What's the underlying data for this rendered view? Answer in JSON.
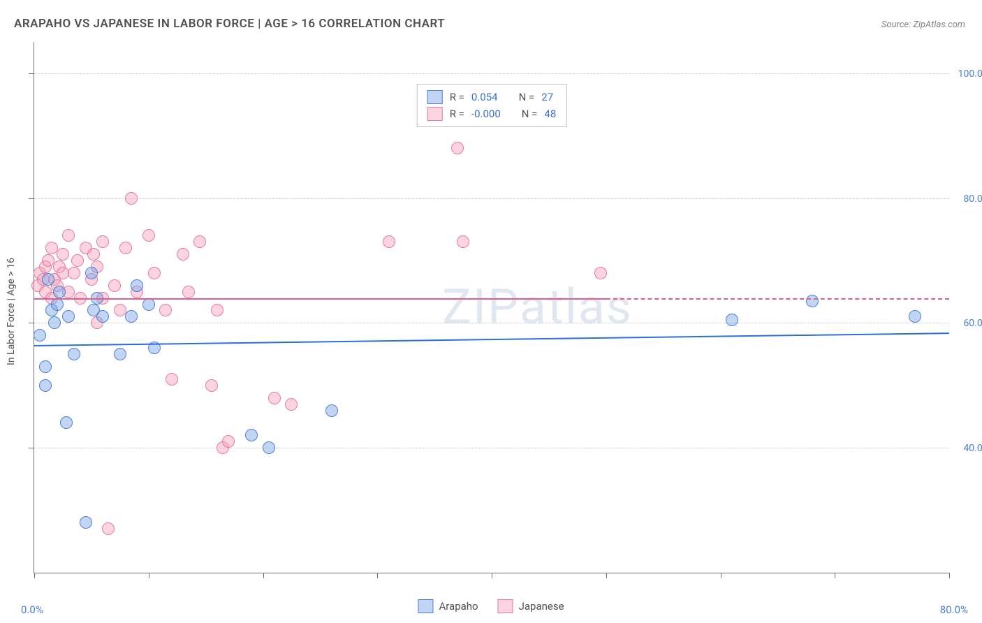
{
  "title": "ARAPAHO VS JAPANESE IN LABOR FORCE | AGE > 16 CORRELATION CHART",
  "source": "Source: ZipAtlas.com",
  "watermark": "ZIPatlas",
  "yaxis_title": "In Labor Force | Age > 16",
  "xlim": [
    0,
    80
  ],
  "ylim": [
    20,
    105
  ],
  "xtick_positions": [
    0,
    10,
    20,
    30,
    40,
    50,
    60,
    70,
    80
  ],
  "ytick_grid": [
    40,
    60,
    80,
    100
  ],
  "x_axis_labels": {
    "start": "0.0%",
    "end": "80.0%"
  },
  "y_axis_labels": [
    "40.0%",
    "60.0%",
    "80.0%",
    "100.0%"
  ],
  "colors": {
    "arapaho_fill": "rgba(120,165,230,0.45)",
    "arapaho_stroke": "#4a7fd8",
    "japanese_fill": "rgba(245,160,185,0.45)",
    "japanese_stroke": "#e77aa0",
    "trend_blue": "#2d6fd6",
    "trend_pink": "#e15f8f",
    "text_gray": "#505050",
    "stat_blue": "#3b6fd0"
  },
  "legend_top": [
    {
      "series": "arapaho",
      "r_label": "R =",
      "r": "0.054",
      "n_label": "N =",
      "n": "27"
    },
    {
      "series": "japanese",
      "r_label": "R =",
      "r": "-0.000",
      "n_label": "N =",
      "n": "48"
    }
  ],
  "legend_bottom": [
    {
      "series": "arapaho",
      "label": "Arapaho"
    },
    {
      "series": "japanese",
      "label": "Japanese"
    }
  ],
  "trend_lines": {
    "arapaho": {
      "x0": 0,
      "y0": 56.5,
      "x1": 80,
      "y1": 58.5,
      "color": "#2d6fd6",
      "dashed_from": null
    },
    "japanese": {
      "x0": 0,
      "y0": 64.0,
      "x1": 80,
      "y1": 64.0,
      "color": "#e15f8f",
      "dashed_from": 50
    }
  },
  "points": {
    "arapaho": [
      {
        "x": 0.5,
        "y": 58
      },
      {
        "x": 1,
        "y": 50
      },
      {
        "x": 1,
        "y": 53
      },
      {
        "x": 1.2,
        "y": 67
      },
      {
        "x": 1.5,
        "y": 62
      },
      {
        "x": 1.8,
        "y": 60
      },
      {
        "x": 2,
        "y": 63
      },
      {
        "x": 2.2,
        "y": 65
      },
      {
        "x": 2.8,
        "y": 44
      },
      {
        "x": 3,
        "y": 61
      },
      {
        "x": 3.5,
        "y": 55
      },
      {
        "x": 4.5,
        "y": 28
      },
      {
        "x": 5,
        "y": 68
      },
      {
        "x": 5.2,
        "y": 62
      },
      {
        "x": 5.5,
        "y": 64
      },
      {
        "x": 6,
        "y": 61
      },
      {
        "x": 7.5,
        "y": 55
      },
      {
        "x": 8.5,
        "y": 61
      },
      {
        "x": 9,
        "y": 66
      },
      {
        "x": 10,
        "y": 63
      },
      {
        "x": 10.5,
        "y": 56
      },
      {
        "x": 19,
        "y": 42
      },
      {
        "x": 20.5,
        "y": 40
      },
      {
        "x": 26,
        "y": 46
      },
      {
        "x": 61,
        "y": 60.5
      },
      {
        "x": 68,
        "y": 63.5
      },
      {
        "x": 77,
        "y": 61
      }
    ],
    "japanese": [
      {
        "x": 0.3,
        "y": 66
      },
      {
        "x": 0.5,
        "y": 68
      },
      {
        "x": 0.8,
        "y": 67
      },
      {
        "x": 1,
        "y": 69
      },
      {
        "x": 1,
        "y": 65
      },
      {
        "x": 1.2,
        "y": 70
      },
      {
        "x": 1.5,
        "y": 72
      },
      {
        "x": 1.5,
        "y": 64
      },
      {
        "x": 1.8,
        "y": 67
      },
      {
        "x": 2,
        "y": 66
      },
      {
        "x": 2.2,
        "y": 69
      },
      {
        "x": 2.5,
        "y": 68
      },
      {
        "x": 2.5,
        "y": 71
      },
      {
        "x": 3,
        "y": 74
      },
      {
        "x": 3,
        "y": 65
      },
      {
        "x": 3.5,
        "y": 68
      },
      {
        "x": 3.8,
        "y": 70
      },
      {
        "x": 4,
        "y": 64
      },
      {
        "x": 4.5,
        "y": 72
      },
      {
        "x": 5,
        "y": 67
      },
      {
        "x": 5.2,
        "y": 71
      },
      {
        "x": 5.5,
        "y": 69
      },
      {
        "x": 5.5,
        "y": 60
      },
      {
        "x": 6,
        "y": 73
      },
      {
        "x": 6,
        "y": 64
      },
      {
        "x": 6.5,
        "y": 27
      },
      {
        "x": 7,
        "y": 66
      },
      {
        "x": 7.5,
        "y": 62
      },
      {
        "x": 8,
        "y": 72
      },
      {
        "x": 8.5,
        "y": 80
      },
      {
        "x": 9,
        "y": 65
      },
      {
        "x": 10,
        "y": 74
      },
      {
        "x": 10.5,
        "y": 68
      },
      {
        "x": 11.5,
        "y": 62
      },
      {
        "x": 12,
        "y": 51
      },
      {
        "x": 13,
        "y": 71
      },
      {
        "x": 13.5,
        "y": 65
      },
      {
        "x": 14.5,
        "y": 73
      },
      {
        "x": 15.5,
        "y": 50
      },
      {
        "x": 16,
        "y": 62
      },
      {
        "x": 16.5,
        "y": 40
      },
      {
        "x": 17,
        "y": 41
      },
      {
        "x": 21,
        "y": 48
      },
      {
        "x": 22.5,
        "y": 47
      },
      {
        "x": 31,
        "y": 73
      },
      {
        "x": 37,
        "y": 88
      },
      {
        "x": 37.5,
        "y": 73
      },
      {
        "x": 49.5,
        "y": 68
      }
    ]
  }
}
